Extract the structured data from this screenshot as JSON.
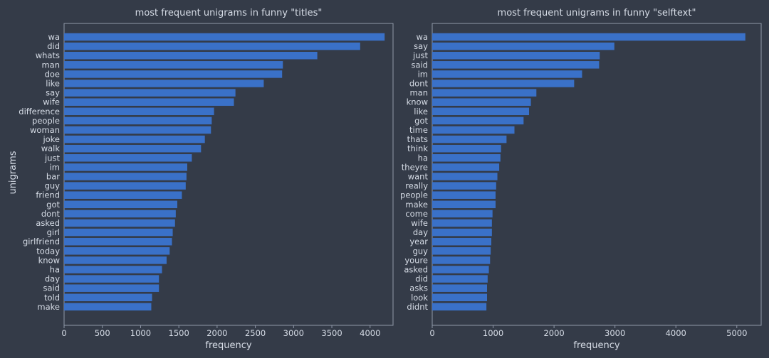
{
  "colors": {
    "background": "#343b48",
    "bar": "#3a71c8",
    "text": "#d6dce6",
    "axis": "#8f98a8"
  },
  "chart_data": [
    {
      "type": "bar",
      "orientation": "horizontal",
      "title": "most frequent unigrams in funny \"titles\"",
      "xlabel": "frequency",
      "ylabel": "unigrams",
      "xlim": [
        0,
        4300
      ],
      "xticks": [
        0,
        500,
        1000,
        1500,
        2000,
        2500,
        3000,
        3500,
        4000
      ],
      "grid": false,
      "categories": [
        "wa",
        "did",
        "whats",
        "man",
        "doe",
        "like",
        "say",
        "wife",
        "difference",
        "people",
        "woman",
        "joke",
        "walk",
        "just",
        "im",
        "bar",
        "guy",
        "friend",
        "got",
        "dont",
        "asked",
        "girl",
        "girlfriend",
        "today",
        "know",
        "ha",
        "day",
        "said",
        "told",
        "make"
      ],
      "values": [
        4190,
        3870,
        3310,
        2860,
        2850,
        2610,
        2240,
        2220,
        1960,
        1930,
        1920,
        1840,
        1790,
        1670,
        1610,
        1600,
        1590,
        1540,
        1480,
        1460,
        1450,
        1420,
        1410,
        1380,
        1340,
        1280,
        1240,
        1240,
        1150,
        1140
      ]
    },
    {
      "type": "bar",
      "orientation": "horizontal",
      "title": "most frequent unigrams in funny \"selftext\"",
      "xlabel": "frequency",
      "ylabel": "",
      "xlim": [
        0,
        5400
      ],
      "xticks": [
        0,
        1000,
        2000,
        3000,
        4000,
        5000
      ],
      "grid": false,
      "categories": [
        "wa",
        "say",
        "just",
        "said",
        "im",
        "dont",
        "man",
        "know",
        "like",
        "got",
        "time",
        "thats",
        "think",
        "ha",
        "theyre",
        "want",
        "really",
        "people",
        "make",
        "come",
        "wife",
        "day",
        "year",
        "guy",
        "youre",
        "asked",
        "did",
        "asks",
        "look",
        "didnt"
      ],
      "values": [
        5140,
        2990,
        2750,
        2740,
        2460,
        2330,
        1710,
        1620,
        1590,
        1500,
        1350,
        1220,
        1130,
        1120,
        1100,
        1070,
        1050,
        1040,
        1040,
        990,
        980,
        980,
        970,
        960,
        950,
        930,
        910,
        900,
        900,
        890
      ]
    }
  ]
}
